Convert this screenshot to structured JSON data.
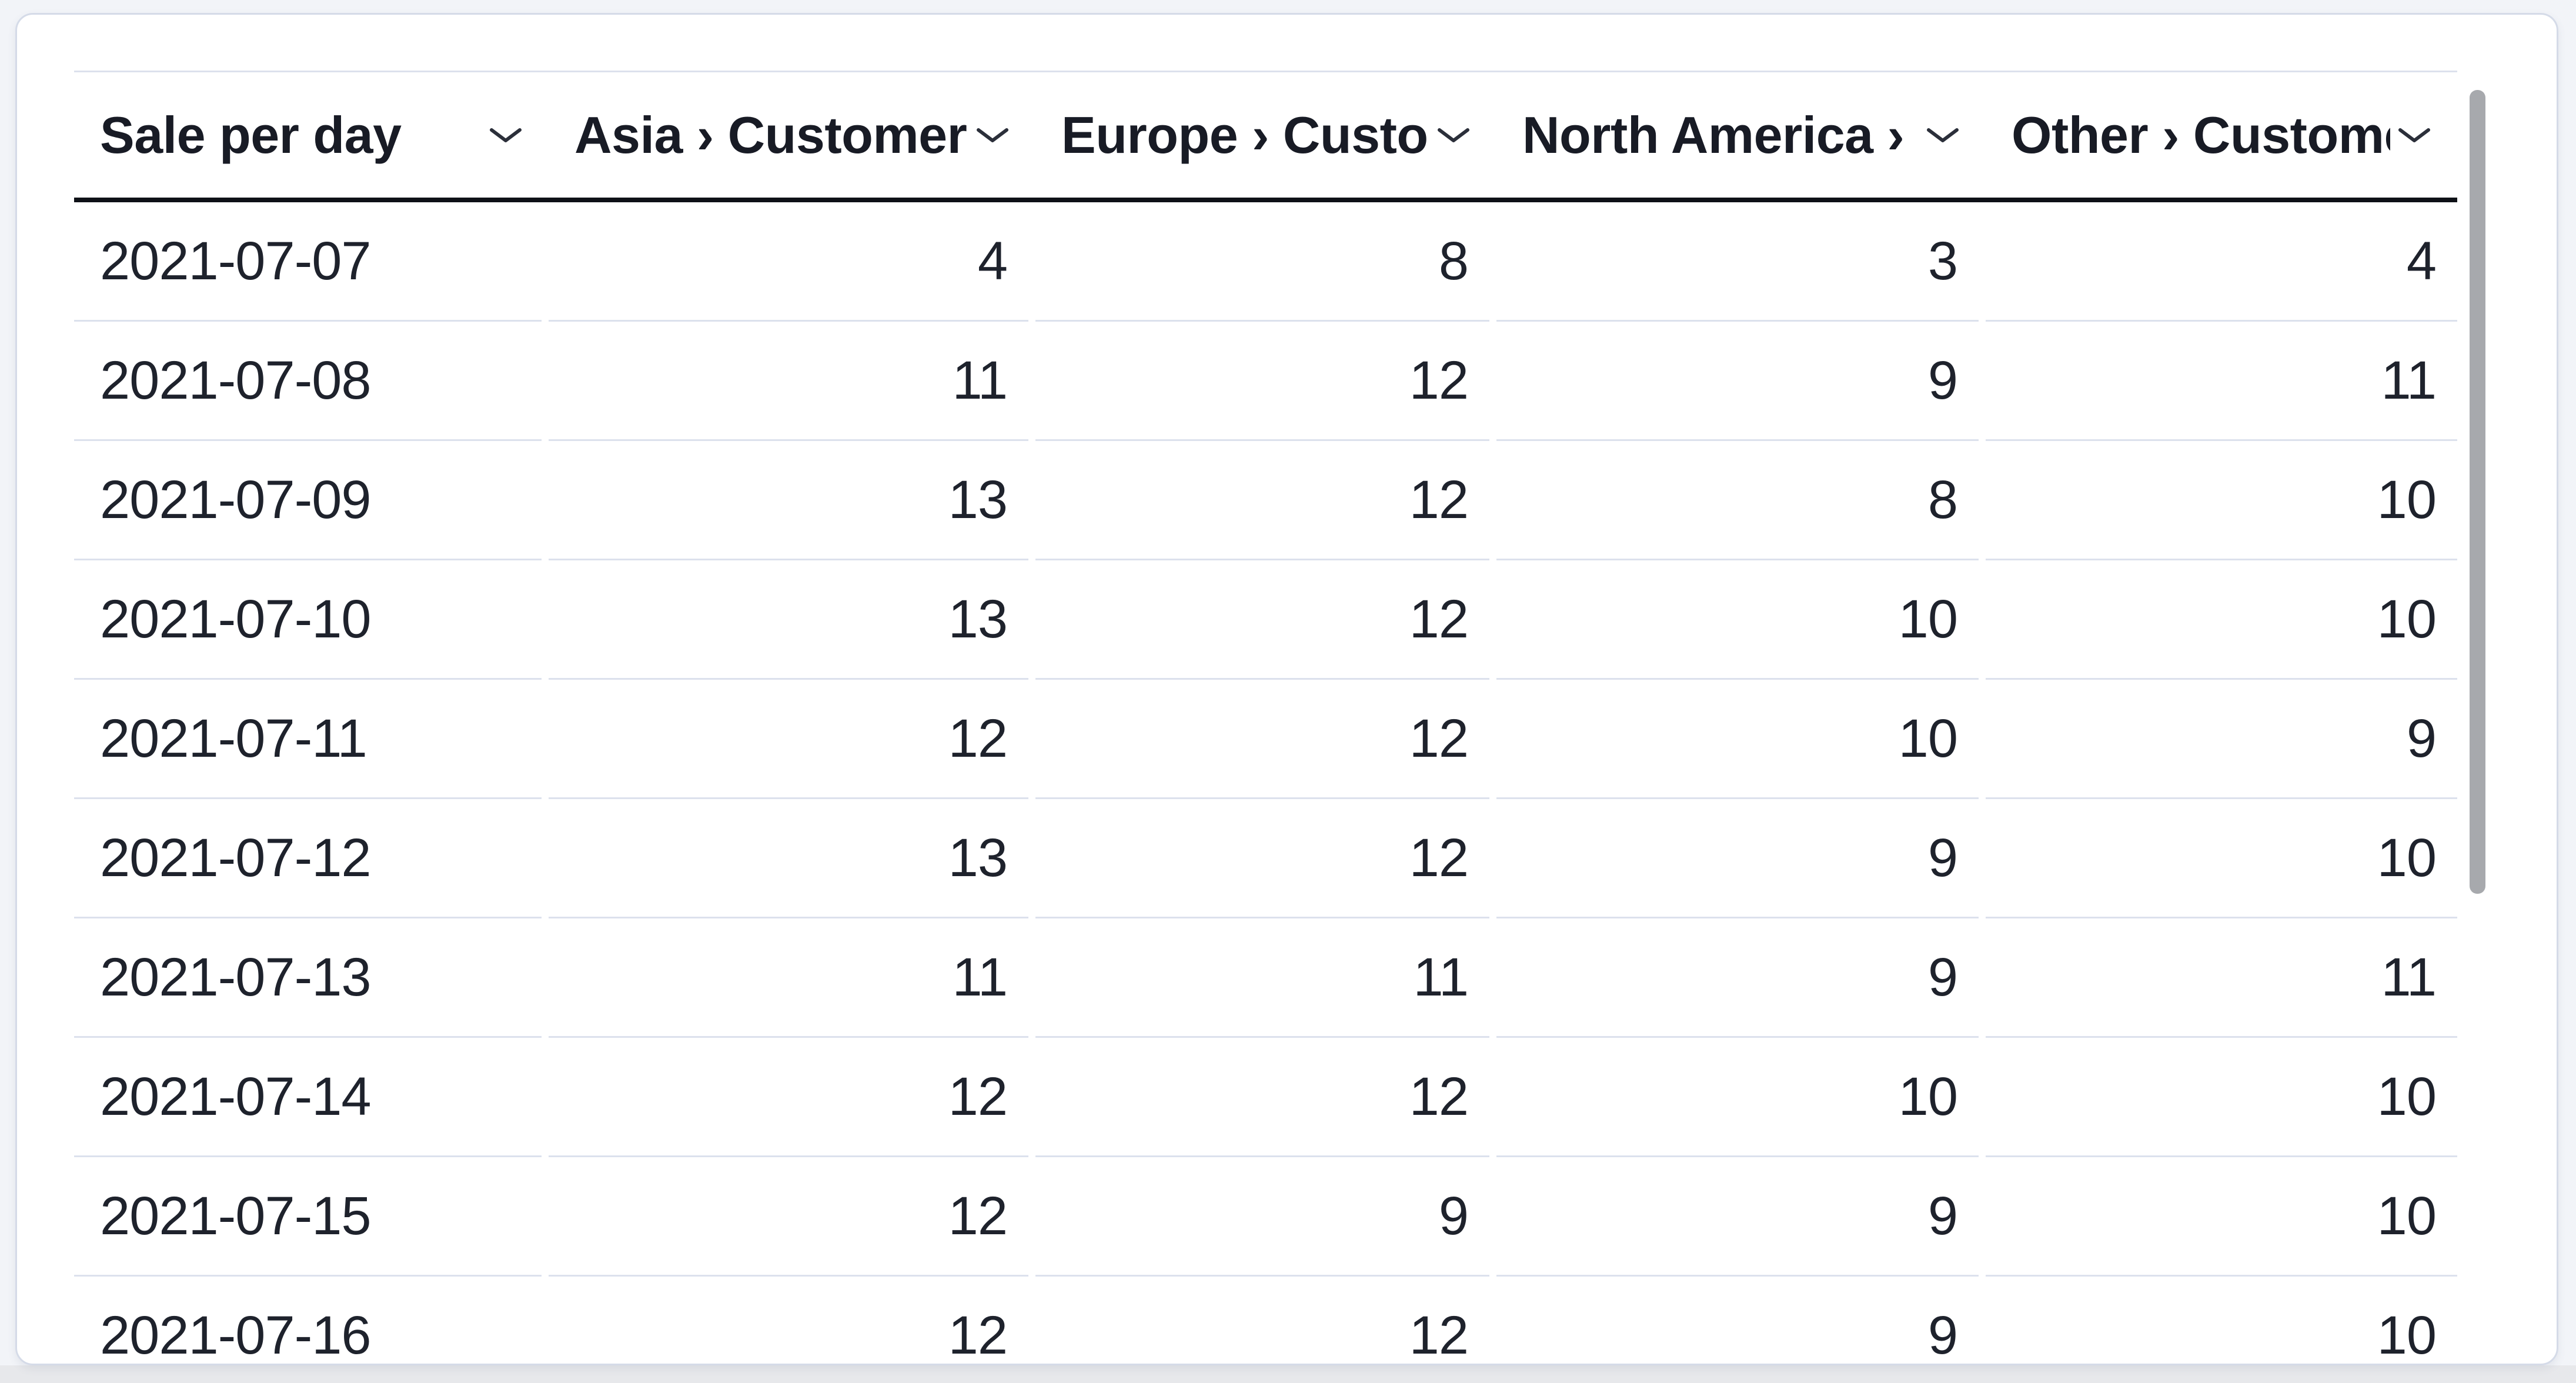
{
  "table": {
    "columns": [
      {
        "label": "Sale per day"
      },
      {
        "label": "Asia › Customers"
      },
      {
        "label": "Europe › Customers"
      },
      {
        "label": "North America › Customers"
      },
      {
        "label": "Other › Customers"
      }
    ],
    "rows": [
      [
        "2021-07-07",
        "4",
        "8",
        "3",
        "4"
      ],
      [
        "2021-07-08",
        "11",
        "12",
        "9",
        "11"
      ],
      [
        "2021-07-09",
        "13",
        "12",
        "8",
        "10"
      ],
      [
        "2021-07-10",
        "13",
        "12",
        "10",
        "10"
      ],
      [
        "2021-07-11",
        "12",
        "12",
        "10",
        "9"
      ],
      [
        "2021-07-12",
        "13",
        "12",
        "9",
        "10"
      ],
      [
        "2021-07-13",
        "11",
        "11",
        "9",
        "11"
      ],
      [
        "2021-07-14",
        "12",
        "12",
        "10",
        "10"
      ],
      [
        "2021-07-15",
        "12",
        "9",
        "9",
        "10"
      ],
      [
        "2021-07-16",
        "12",
        "12",
        "9",
        "10"
      ]
    ]
  },
  "icons": {
    "header_sort": "chevron-down-icon"
  },
  "colors": {
    "page_background": "#f2f4f8",
    "bottom_strip": "#e7e8eb",
    "card_background": "#ffffff",
    "card_border": "#d5dbe8",
    "row_separator": "#dce1ed",
    "header_divider": "#0e1117",
    "text": "#1e222c",
    "header_text": "#181b25",
    "scrollbar_thumb": "#a7a9ad"
  }
}
